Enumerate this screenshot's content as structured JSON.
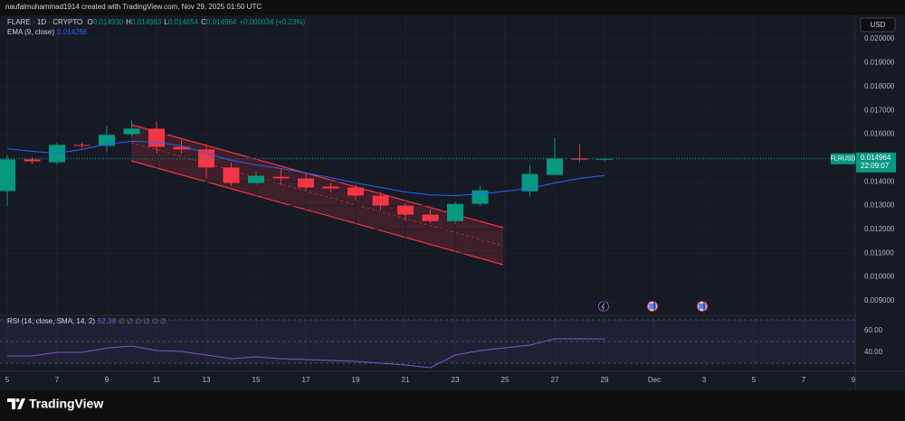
{
  "header": {
    "credit": "naufalmuhammad1914 created with TradingView.com, Nov 29, 2025 01:50 UTC",
    "symbol": "FLARE · 1D · CRYPTO",
    "ohlc": [
      {
        "key": "O",
        "value": "0.014930"
      },
      {
        "key": "H",
        "value": "0.014983"
      },
      {
        "key": "L",
        "value": "0.014854"
      },
      {
        "key": "C",
        "value": "0.014964"
      }
    ],
    "change": "+0.000034 (+0.23%)",
    "currency": "USD"
  },
  "brand": "TradingView",
  "chart_data": [
    {
      "type": "candlestick",
      "x": [
        5,
        6,
        7,
        8,
        9,
        10,
        11,
        12,
        13,
        14,
        15,
        16,
        17,
        18,
        19,
        20,
        21,
        22,
        23,
        24,
        26,
        27,
        28,
        29
      ],
      "open": [
        0.01361,
        0.01494,
        0.01482,
        0.01555,
        0.01551,
        0.016,
        0.01623,
        0.01547,
        0.01536,
        0.0146,
        0.01395,
        0.01421,
        0.01414,
        0.0138,
        0.01376,
        0.01342,
        0.013,
        0.01262,
        0.01235,
        0.01307,
        0.0136,
        0.01429,
        0.01498,
        0.01493
      ],
      "high": [
        0.01513,
        0.01501,
        0.01566,
        0.01566,
        0.01635,
        0.01661,
        0.01654,
        0.01577,
        0.01558,
        0.01482,
        0.01444,
        0.01456,
        0.01437,
        0.01395,
        0.01387,
        0.01357,
        0.01311,
        0.01284,
        0.01315,
        0.01383,
        0.01471,
        0.01585,
        0.01558,
        0.014983
      ],
      "low": [
        0.013,
        0.01475,
        0.01471,
        0.0154,
        0.01528,
        0.01589,
        0.0152,
        0.0152,
        0.01414,
        0.01383,
        0.01387,
        0.01387,
        0.01361,
        0.01357,
        0.01322,
        0.01281,
        0.01235,
        0.01227,
        0.01224,
        0.013,
        0.01338,
        0.01429,
        0.01482,
        0.014854
      ],
      "close": [
        0.01494,
        0.01486,
        0.01555,
        0.01551,
        0.01597,
        0.01623,
        0.01547,
        0.01536,
        0.0146,
        0.01395,
        0.01425,
        0.01414,
        0.01376,
        0.01372,
        0.01342,
        0.013,
        0.01262,
        0.01235,
        0.01307,
        0.01364,
        0.01433,
        0.01498,
        0.01493,
        0.014964
      ],
      "up_color": "#089981",
      "down_color": "#f23645",
      "series": [
        {
          "name": "EMA (9, close)",
          "color": "#2962ff",
          "last_value_label": "0.014266",
          "values": [
            0.01539,
            0.01528,
            0.0152,
            0.01536,
            0.01558,
            0.0157,
            0.01566,
            0.01551,
            0.0152,
            0.0149,
            0.01471,
            0.01456,
            0.01437,
            0.01418,
            0.01395,
            0.01376,
            0.01357,
            0.01345,
            0.01342,
            0.01349,
            0.01372,
            0.01395,
            0.01414,
            0.014266
          ]
        }
      ],
      "symbol_tag": "FLRUSD",
      "last_price_label": "0.014964",
      "countdown": "22:09:07",
      "xlim": [
        4.709,
        39.073
      ],
      "ylim": [
        0.00843,
        0.02099
      ],
      "xticks": [
        5,
        7,
        9,
        11,
        13,
        15,
        17,
        19,
        21,
        23,
        25,
        27,
        29,
        {
          "value": 31,
          "label": "Dec"
        },
        {
          "value": 33,
          "label": "3"
        },
        {
          "value": 35,
          "label": "5"
        },
        {
          "value": 37,
          "label": "7"
        },
        {
          "value": 39,
          "label": "9"
        }
      ],
      "yticks": [
        {
          "value": 0.009,
          "label": "0.009000"
        },
        {
          "value": 0.01,
          "label": "0.010000"
        },
        {
          "value": 0.011,
          "label": "0.011000"
        },
        {
          "value": 0.012,
          "label": "0.012000"
        },
        {
          "value": 0.013,
          "label": "0.013000"
        },
        {
          "value": 0.014,
          "label": "0.014000"
        },
        {
          "value": 0.015,
          "label": "0.015000"
        },
        {
          "value": 0.016,
          "label": "0.016000"
        },
        {
          "value": 0.017,
          "label": "0.017000"
        },
        {
          "value": 0.018,
          "label": "0.018000"
        },
        {
          "value": 0.019,
          "label": "0.019000"
        },
        {
          "value": 0.02,
          "label": "0.020000"
        }
      ],
      "grid": true
    },
    {
      "type": "line",
      "x": [
        5,
        6,
        7,
        8,
        9,
        10,
        11,
        12,
        13,
        14,
        15,
        16,
        17,
        18,
        19,
        20,
        21,
        22,
        23,
        24,
        26,
        27,
        28,
        29
      ],
      "series": [
        {
          "name": "RSI (14, close, SMA, 14, 2)",
          "color": "#7e57c2",
          "last_value_label": "52.38",
          "status": "∅ ∅ ∅ ∅ ∅ ∅",
          "values": [
            36.7,
            36.7,
            40,
            40,
            44,
            45.8,
            41.7,
            40.8,
            37.5,
            34.2,
            35.8,
            34.2,
            33.3,
            32.5,
            31.7,
            30,
            28.3,
            25.8,
            37.5,
            41.7,
            46.7,
            52.5,
            52.5,
            52.38
          ]
        }
      ],
      "levels": [
        30,
        50,
        70
      ],
      "xlim": [
        4.709,
        39.073
      ],
      "ylim": [
        23.33,
        73.33
      ],
      "yticks": [
        {
          "value": 40,
          "label": "40.00"
        },
        {
          "value": 60,
          "label": "60.00"
        }
      ]
    }
  ]
}
